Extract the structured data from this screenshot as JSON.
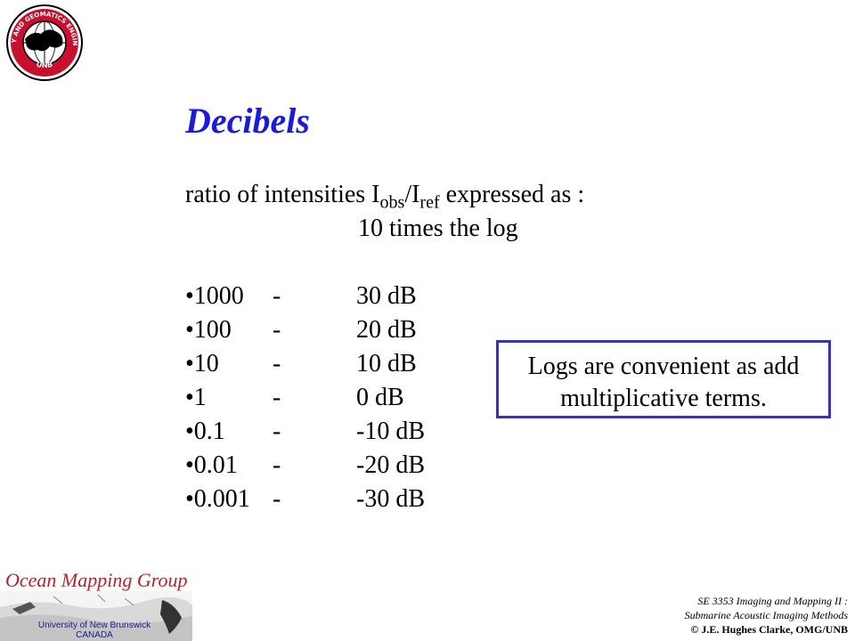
{
  "slide": {
    "title": "Decibels",
    "intro_line1_pre": "ratio of intensities  I",
    "intro_sub_obs": "obs",
    "intro_slash": "/I",
    "intro_sub_ref": "ref",
    "intro_line1_post": " expressed as :",
    "intro_line2": "10 times the log",
    "rows": [
      {
        "ratio": "•1000",
        "dash": "-",
        "db": "30 dB"
      },
      {
        "ratio": "•100",
        "dash": "-",
        "db": "20 dB"
      },
      {
        "ratio": "•10",
        "dash": "-",
        "db": "10 dB"
      },
      {
        "ratio": "•1",
        "dash": "-",
        "db": "0 dB"
      },
      {
        "ratio": "•0.1",
        "dash": "-",
        "db": "-10 dB"
      },
      {
        "ratio": "•0.01",
        "dash": "-",
        "db": "-20 dB"
      },
      {
        "ratio": "•0.001",
        "dash": "-",
        "db": "-30 dB"
      }
    ],
    "callout_line1": "Logs are convenient as add",
    "callout_line2": "multiplicative terms."
  },
  "logos": {
    "unb_ring_text": "GEODESY AND GEOMATICS ENGINEERING",
    "unb_bottom_text": "UNB",
    "omg_title": "Ocean Mapping Group",
    "omg_univ_line1": "University of New Brunswick",
    "omg_univ_line2": "CANADA"
  },
  "footer": {
    "course_line1": "SE 3353 Imaging and Mapping II :",
    "course_line2": "Submarine Acoustic Imaging Methods",
    "copyright": "© J.E. Hughes Clarke, OMG/UNB"
  },
  "colors": {
    "title": "#1a1adc",
    "callout_border": "#3333bb",
    "omg_title": "#b5222a",
    "unb_red": "#c8102e"
  }
}
